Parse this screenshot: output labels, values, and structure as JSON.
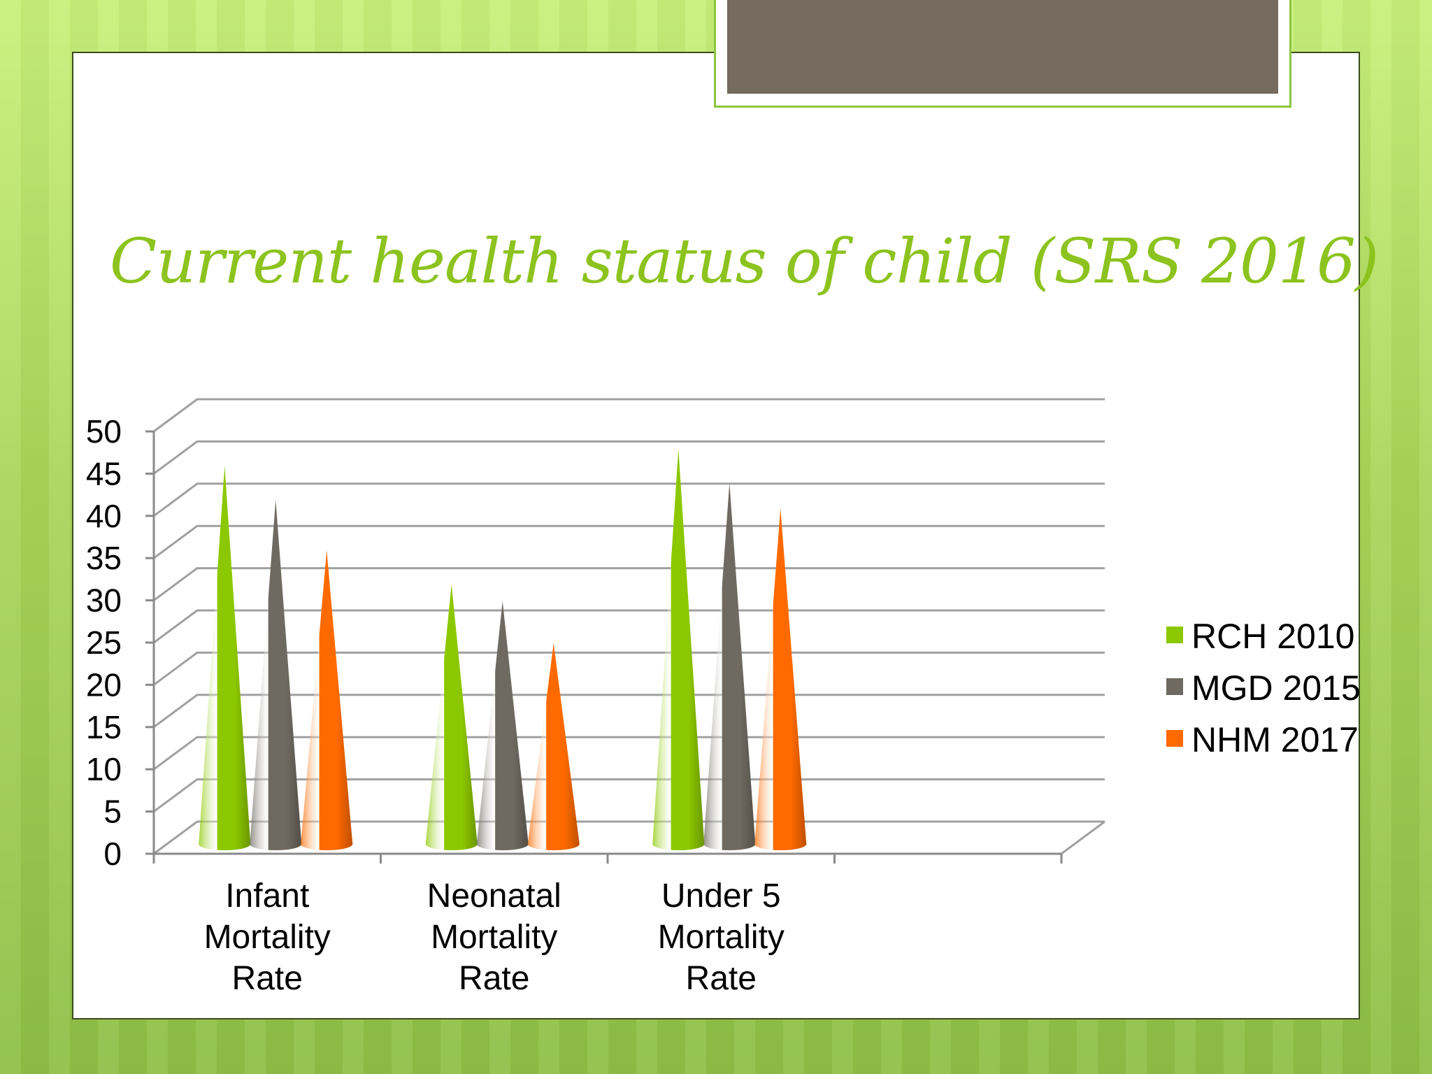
{
  "slide": {
    "title": "Current health status of child  (SRS 2016)"
  },
  "colors": {
    "background": "#b5e06a",
    "title": "#8cc31e",
    "tab_fill": "#756a5e",
    "tab_border": "#8cc63f"
  },
  "chart_data": {
    "type": "bar",
    "style": "3d-cone",
    "categories": [
      "Infant Mortality Rate",
      "Neonatal Mortality Rate",
      "Under 5 Mortality Rate"
    ],
    "category_lines": [
      [
        "Infant",
        "Mortality",
        "Rate"
      ],
      [
        "Neonatal",
        "Mortality",
        "Rate"
      ],
      [
        "Under 5",
        "Mortality",
        "Rate"
      ]
    ],
    "series": [
      {
        "name": "RCH 2010",
        "color": "#8cc800",
        "values": [
          44,
          30,
          46
        ]
      },
      {
        "name": "MGD 2015",
        "color": "#6f6a61",
        "values": [
          40,
          28,
          42
        ]
      },
      {
        "name": "NHM 2017",
        "color": "#ff6a00",
        "values": [
          34,
          23,
          39
        ]
      }
    ],
    "yticks": [
      "0",
      "5",
      "10",
      "15",
      "20",
      "25",
      "30",
      "35",
      "40",
      "45",
      "50"
    ],
    "ylim": [
      0,
      50
    ],
    "grid": true,
    "legend": "right"
  }
}
